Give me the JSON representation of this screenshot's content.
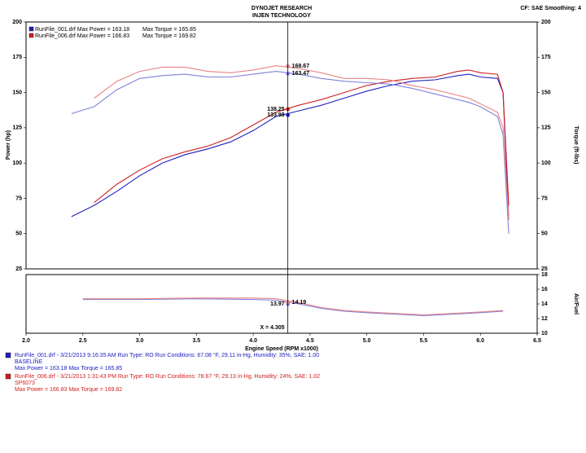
{
  "header": {
    "company": "DYNOJET RESEARCH",
    "customer": "INJEN TECHNOLOGY",
    "settings": "CF: SAE  Smoothing: 4"
  },
  "chart_data": [
    {
      "type": "line",
      "ylabel": "Power (hp)",
      "y2label": "Torque (ft-lbs)",
      "xlim": [
        2.0,
        6.5
      ],
      "ylim": [
        25,
        200
      ],
      "yticks": [
        25,
        50,
        75,
        100,
        125,
        150,
        175,
        200
      ],
      "y2lim": [
        25,
        200
      ],
      "y2ticks": [
        25,
        50,
        75,
        100,
        125,
        150,
        175,
        200
      ],
      "legend": [
        {
          "label": "RunFile_001.drf Max Power = 163.18",
          "torque": "Max Torque = 165.85",
          "color": "#2020c0"
        },
        {
          "label": "RunFile_006.drf Max Power = 166.83",
          "torque": "Max Torque = 169.82",
          "color": "#d02020"
        }
      ],
      "cursor": {
        "value": 4.305,
        "label": "X = 4.305"
      },
      "x": [
        2.4,
        2.6,
        2.8,
        3.0,
        3.2,
        3.4,
        3.6,
        3.8,
        4.0,
        4.2,
        4.4,
        4.6,
        4.8,
        5.0,
        5.2,
        5.4,
        5.6,
        5.8,
        5.9,
        6.0,
        6.15,
        6.2,
        6.25
      ],
      "series": [
        {
          "color": "#2020c0",
          "values": [
            62,
            70,
            80,
            91,
            100,
            106,
            110,
            115,
            123,
            133,
            137,
            141,
            146,
            151,
            155,
            158,
            159,
            162,
            163,
            161,
            160,
            150,
            60
          ],
          "cursor_value": 133.98
        },
        {
          "color": "#d02020",
          "values": [
            null,
            72,
            85,
            95,
            103,
            108,
            112,
            118,
            127,
            136,
            141,
            145,
            150,
            155,
            158,
            160,
            161,
            165,
            166,
            164,
            163,
            150,
            70
          ],
          "cursor_value": 138.25
        },
        {
          "color": "#8080dc",
          "axis": "y2",
          "values": [
            135,
            140,
            152,
            160,
            162,
            163,
            161,
            161,
            163,
            165,
            163,
            160,
            158,
            157,
            156,
            153,
            149,
            145,
            143,
            140,
            133,
            120,
            50
          ],
          "cursor_value": 163.47
        },
        {
          "color": "#e88484",
          "axis": "y2",
          "values": [
            null,
            146,
            158,
            165,
            168,
            168,
            165,
            164,
            166,
            169,
            167,
            164,
            160,
            160,
            159,
            155,
            152,
            148,
            146,
            142,
            136,
            125,
            60
          ],
          "cursor_value": 168.67
        }
      ]
    },
    {
      "type": "line",
      "xlabel": "Engine Speed (RPM x1000)",
      "y2label": "Air/Fuel",
      "xlim": [
        2.0,
        6.5
      ],
      "xticks": [
        {
          "value": 2,
          "label": "2.0"
        },
        2.5,
        {
          "value": 3,
          "label": "3.0"
        },
        3.5,
        {
          "value": 4,
          "label": "4.0"
        },
        4.5,
        {
          "value": 5,
          "label": "5.0"
        },
        5.5,
        {
          "value": 6,
          "label": "6.0"
        },
        6.5
      ],
      "y2lim": [
        10,
        18
      ],
      "y2ticks": [
        10,
        12,
        14,
        16,
        18
      ],
      "x": [
        2.5,
        3.0,
        3.5,
        4.0,
        4.2,
        4.4,
        4.6,
        4.8,
        5.0,
        5.5,
        6.0,
        6.2
      ],
      "series": [
        {
          "color": "#8080dc",
          "axis": "y2",
          "values": [
            14.6,
            14.6,
            14.7,
            14.6,
            14.5,
            14.0,
            13.4,
            13.0,
            12.8,
            12.4,
            12.8,
            13.0
          ],
          "cursor_value": 13.97
        },
        {
          "color": "#e88484",
          "axis": "y2",
          "values": [
            14.7,
            14.7,
            14.8,
            14.8,
            14.7,
            14.2,
            13.5,
            13.1,
            12.9,
            12.5,
            12.9,
            13.1
          ],
          "cursor_value": 14.19
        }
      ]
    }
  ],
  "runs": [
    {
      "color": "#2020c0",
      "line": "RunFile_001.drf - 3/21/2013 9:16:35 AM  Run Type: RO  Run Conditions: 67.08 °F, 29.11 in-Hg,  Humidity:  35%, SAE: 1.00",
      "name": "BASELINE",
      "max": "Max Power = 163.18  Max Torque = 165.85"
    },
    {
      "color": "#d02020",
      "line": "RunFile_006.drf - 3/21/2013 1:31:43 PM  Run Type: RO  Run Conditions: 78.67 °F, 29.13 in-Hg,  Humidity:  24%, SAE: 1.02",
      "name": "SP6073",
      "max": "Max Power = 166.83  Max Torque = 169.82"
    }
  ]
}
